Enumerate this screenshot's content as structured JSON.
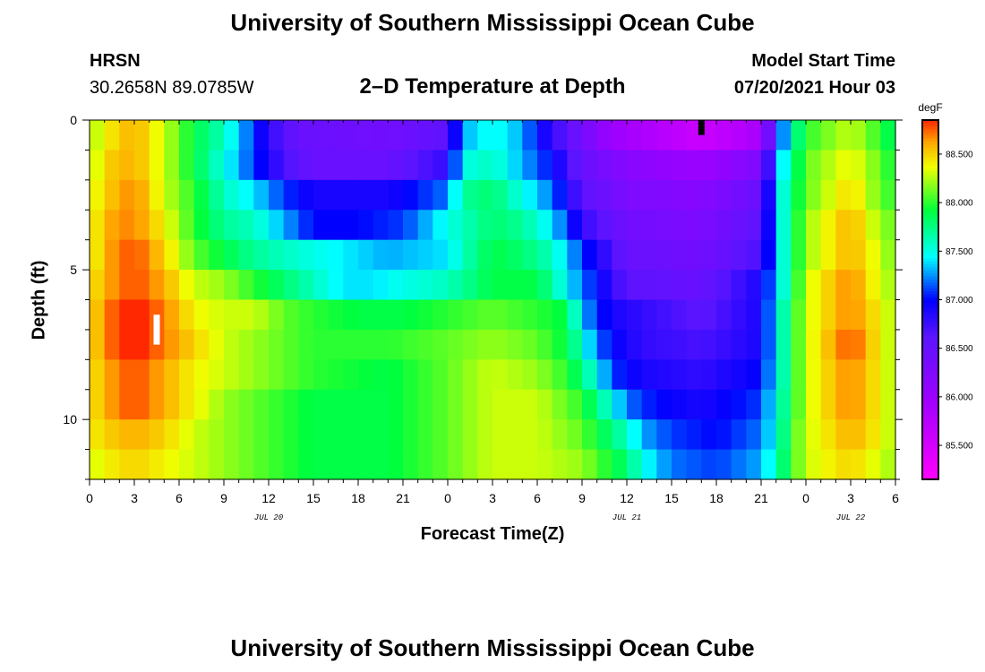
{
  "header": {
    "title": "University of Southern Mississippi Ocean Cube",
    "station": "HRSN",
    "coords": "30.2658N  89.0785W",
    "plot_title": "2–D Temperature at Depth",
    "model_label": "Model Start Time",
    "model_time": "07/20/2021 Hour 03"
  },
  "footer": {
    "title": "University of Southern Mississippi Ocean Cube"
  },
  "chart_data": {
    "type": "heatmap",
    "xlabel": "Forecast Time(Z)",
    "ylabel": "Depth (ft)",
    "x_tick_labels": [
      "0",
      "3",
      "6",
      "9",
      "12",
      "15",
      "18",
      "21",
      "0",
      "3",
      "6",
      "9",
      "12",
      "15",
      "18",
      "21",
      "0",
      "3",
      "6"
    ],
    "x_tick_hours": [
      0,
      3,
      6,
      9,
      12,
      15,
      18,
      21,
      24,
      27,
      30,
      33,
      36,
      39,
      42,
      45,
      48,
      51,
      54
    ],
    "date_labels": [
      {
        "hour": 12,
        "label": "JUL 20"
      },
      {
        "hour": 36,
        "label": "JUL 21"
      },
      {
        "hour": 51,
        "label": "JUL 22"
      }
    ],
    "xlim": [
      0,
      54
    ],
    "y_tick_labels": [
      "0",
      "5",
      "10"
    ],
    "y_ticks": [
      0,
      5,
      10
    ],
    "ylim": [
      0,
      12
    ],
    "y_inverted": true,
    "colorbar": {
      "unit": "degF",
      "ticks": [
        "85.500",
        "86.000",
        "86.500",
        "87.000",
        "87.500",
        "88.000",
        "88.500"
      ],
      "tick_values": [
        85.5,
        86.0,
        86.5,
        87.0,
        87.5,
        88.0,
        88.5
      ],
      "range": [
        85.15,
        88.85
      ]
    },
    "depth_levels": [
      0.5,
      1.5,
      2.5,
      3.5,
      4.5,
      5.5,
      6.5,
      7.5,
      8.5,
      9.5,
      10.5,
      11.5
    ],
    "bands": [
      {
        "depth_range": [
          0,
          1
        ],
        "times": [
          0,
          1,
          3,
          5,
          7,
          9,
          11,
          12,
          14,
          20,
          24,
          25,
          27,
          29,
          30,
          33,
          35,
          41,
          45,
          46,
          47,
          48,
          51,
          53,
          54
        ],
        "values": [
          88.2,
          88.4,
          88.6,
          88.3,
          87.9,
          87.6,
          87.1,
          86.8,
          86.5,
          86.4,
          86.6,
          87.3,
          87.5,
          87.3,
          87.0,
          86.4,
          86.0,
          85.6,
          85.9,
          86.9,
          87.6,
          88.0,
          88.3,
          88.0,
          87.8
        ]
      },
      {
        "depth_range": [
          1,
          2
        ],
        "times": [
          0,
          1,
          3,
          5,
          7,
          9,
          11,
          13,
          15,
          20,
          24,
          25,
          27,
          29,
          31,
          33,
          36,
          41,
          45,
          46,
          47,
          48,
          51,
          53,
          54
        ],
        "values": [
          88.2,
          88.5,
          88.6,
          88.3,
          87.9,
          87.5,
          87.1,
          86.7,
          86.5,
          86.5,
          86.8,
          87.5,
          87.6,
          87.3,
          87.0,
          86.5,
          86.2,
          86.0,
          86.3,
          87.2,
          87.7,
          88.1,
          88.4,
          88.1,
          87.9
        ]
      },
      {
        "depth_range": [
          2,
          3
        ],
        "times": [
          0,
          1,
          3,
          5,
          7,
          9,
          11,
          13,
          15,
          20,
          24,
          25,
          27,
          29,
          31,
          33,
          36,
          41,
          45,
          46,
          47,
          48,
          51,
          53,
          54
        ],
        "values": [
          88.3,
          88.5,
          88.7,
          88.3,
          88.0,
          87.6,
          87.4,
          87.1,
          86.9,
          86.9,
          87.2,
          87.7,
          87.8,
          87.5,
          87.2,
          86.6,
          86.3,
          86.2,
          86.5,
          87.3,
          87.8,
          88.1,
          88.5,
          88.1,
          88.0
        ]
      },
      {
        "depth_range": [
          3,
          4
        ],
        "times": [
          0,
          1,
          3,
          5,
          7,
          9,
          11,
          13,
          15,
          18,
          21,
          24,
          27,
          29,
          31,
          33,
          36,
          41,
          45,
          46,
          47,
          48,
          51,
          53,
          54
        ],
        "values": [
          88.3,
          88.6,
          88.7,
          88.4,
          88.0,
          87.7,
          87.6,
          87.3,
          87.0,
          87.0,
          87.1,
          87.5,
          87.8,
          87.7,
          87.4,
          86.8,
          86.4,
          86.3,
          86.6,
          87.3,
          87.8,
          88.2,
          88.6,
          88.2,
          88.1
        ]
      },
      {
        "depth_range": [
          4,
          5
        ],
        "times": [
          0,
          1,
          3,
          5,
          7,
          9,
          11,
          13,
          15,
          20,
          24,
          25,
          27,
          29,
          31,
          33,
          36,
          41,
          45,
          46,
          47,
          48,
          51,
          53,
          54
        ],
        "values": [
          88.3,
          88.6,
          88.8,
          88.5,
          88.1,
          87.9,
          87.7,
          87.6,
          87.5,
          87.3,
          87.4,
          87.6,
          87.9,
          87.8,
          87.6,
          87.1,
          86.5,
          86.4,
          86.7,
          87.3,
          87.8,
          88.2,
          88.6,
          88.3,
          88.1
        ]
      },
      {
        "depth_range": [
          5,
          6
        ],
        "times": [
          0,
          1,
          3,
          5,
          7,
          9,
          11,
          13,
          15,
          17,
          19,
          21,
          24,
          27,
          30,
          33,
          36,
          41,
          45,
          46,
          47,
          48,
          51,
          53,
          54
        ],
        "values": [
          88.4,
          88.6,
          88.8,
          88.6,
          88.3,
          88.2,
          88.0,
          87.8,
          87.6,
          87.4,
          87.4,
          87.5,
          87.6,
          87.9,
          87.9,
          87.2,
          86.6,
          86.5,
          86.9,
          87.3,
          87.8,
          88.3,
          88.7,
          88.3,
          88.2
        ]
      },
      {
        "depth_range": [
          6,
          7
        ],
        "times": [
          0,
          1,
          3,
          5,
          7,
          9,
          11,
          13,
          15,
          18,
          21,
          24,
          27,
          30,
          32,
          33,
          35,
          41,
          45,
          46,
          47,
          48,
          51,
          53,
          54
        ],
        "values": [
          88.4,
          88.7,
          88.9,
          88.7,
          88.4,
          88.3,
          88.3,
          88.1,
          88.0,
          87.9,
          87.9,
          88.0,
          88.1,
          88.0,
          87.9,
          87.3,
          86.9,
          86.6,
          86.9,
          87.4,
          87.9,
          88.3,
          88.7,
          88.4,
          88.2
        ]
      },
      {
        "depth_range": [
          7,
          8
        ],
        "times": [
          0,
          1,
          3,
          5,
          7,
          9,
          11,
          13,
          15,
          20,
          24,
          27,
          30,
          32,
          34,
          35,
          37,
          41,
          45,
          46,
          47,
          48,
          51,
          53,
          54
        ],
        "values": [
          88.4,
          88.7,
          88.9,
          88.7,
          88.5,
          88.3,
          88.2,
          88.1,
          88.0,
          88.0,
          88.1,
          88.2,
          88.1,
          87.9,
          87.2,
          87.0,
          86.8,
          86.7,
          86.9,
          87.4,
          87.9,
          88.3,
          88.8,
          88.4,
          88.2
        ]
      },
      {
        "depth_range": [
          8,
          9
        ],
        "times": [
          0,
          1,
          3,
          5,
          7,
          9,
          11,
          13,
          15,
          20,
          24,
          27,
          30,
          32,
          34,
          35,
          37,
          41,
          45,
          46,
          47,
          48,
          51,
          53,
          54
        ],
        "values": [
          88.4,
          88.6,
          88.8,
          88.6,
          88.4,
          88.3,
          88.2,
          88.1,
          88.0,
          87.9,
          88.1,
          88.3,
          88.2,
          88.0,
          87.5,
          87.1,
          86.9,
          86.8,
          87.0,
          87.4,
          87.9,
          88.3,
          88.7,
          88.4,
          88.2
        ]
      },
      {
        "depth_range": [
          9,
          10
        ],
        "times": [
          0,
          1,
          3,
          5,
          7,
          9,
          11,
          13,
          15,
          20,
          24,
          27,
          30,
          33,
          35,
          36,
          38,
          41,
          45,
          46,
          47,
          48,
          51,
          53,
          54
        ],
        "values": [
          88.4,
          88.6,
          88.8,
          88.6,
          88.4,
          88.2,
          88.1,
          88.0,
          87.9,
          87.9,
          88.1,
          88.3,
          88.3,
          88.0,
          87.5,
          87.2,
          87.0,
          86.9,
          87.1,
          87.5,
          87.9,
          88.3,
          88.7,
          88.4,
          88.2
        ]
      },
      {
        "depth_range": [
          10,
          11
        ],
        "times": [
          0,
          1,
          3,
          5,
          7,
          9,
          11,
          13,
          15,
          20,
          24,
          27,
          30,
          33,
          36,
          37,
          39,
          42,
          45,
          46,
          47,
          48,
          51,
          53,
          54
        ],
        "values": [
          88.4,
          88.5,
          88.6,
          88.5,
          88.3,
          88.2,
          88.1,
          88.0,
          87.9,
          87.9,
          88.1,
          88.3,
          88.3,
          88.1,
          87.6,
          87.3,
          87.1,
          87.0,
          87.2,
          87.5,
          88.0,
          88.3,
          88.6,
          88.4,
          88.2
        ]
      },
      {
        "depth_range": [
          11,
          12
        ],
        "times": [
          0,
          1,
          3,
          5,
          7,
          9,
          11,
          13,
          15,
          20,
          24,
          27,
          30,
          33,
          36,
          37,
          39,
          42,
          45,
          46,
          47,
          48,
          51,
          53,
          54
        ],
        "values": [
          88.3,
          88.4,
          88.5,
          88.4,
          88.3,
          88.2,
          88.1,
          88.0,
          87.9,
          87.9,
          88.1,
          88.3,
          88.3,
          88.2,
          87.8,
          87.5,
          87.2,
          87.1,
          87.3,
          87.6,
          88.0,
          88.3,
          88.5,
          88.3,
          88.2
        ]
      }
    ],
    "markers": [
      {
        "name": "max",
        "hour": 4.5,
        "depth_range": [
          6.5,
          7.5
        ],
        "color": "#ffffff"
      },
      {
        "name": "min",
        "hour": 41.0,
        "depth_range": [
          0.0,
          0.5
        ],
        "color": "#000000"
      }
    ]
  }
}
